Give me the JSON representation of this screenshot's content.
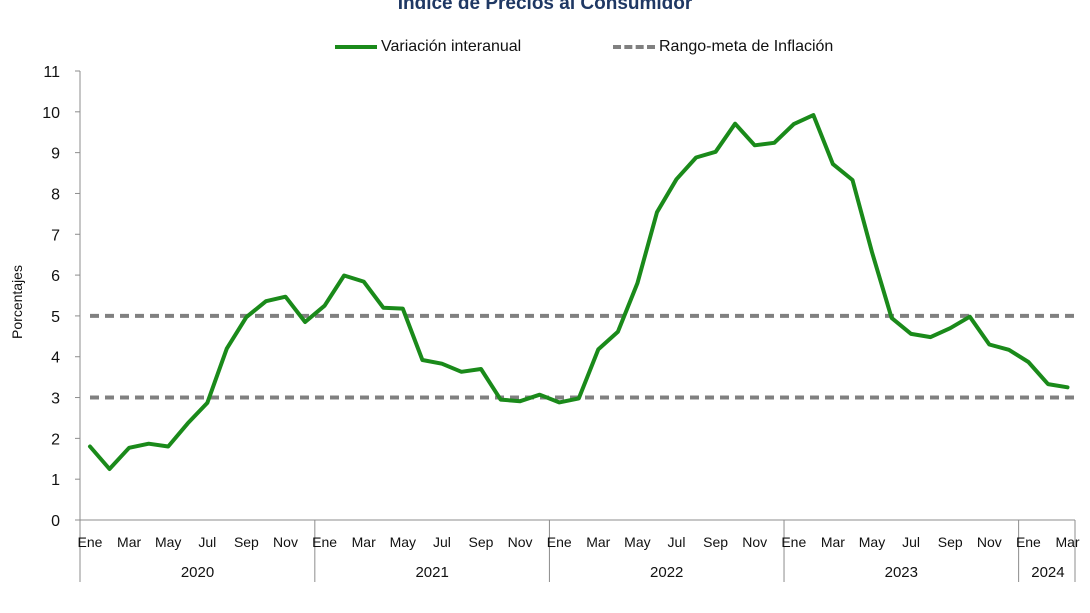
{
  "chart_data": {
    "type": "line",
    "title": "Índice de Precios al Consumidor",
    "xlabel": "",
    "ylabel": "Porcentajes",
    "ylim": [
      0,
      11
    ],
    "yticks": [
      0,
      1,
      2,
      3,
      4,
      5,
      6,
      7,
      8,
      9,
      10,
      11
    ],
    "grid": false,
    "legend_position": "top",
    "month_tick_labels": [
      "Ene",
      "Mar",
      "May",
      "Jul",
      "Sep",
      "Nov"
    ],
    "month_tick_labels_2024": [
      "Ene",
      "Mar"
    ],
    "years": [
      {
        "label": "2020",
        "months": 12
      },
      {
        "label": "2021",
        "months": 12
      },
      {
        "label": "2022",
        "months": 12
      },
      {
        "label": "2023",
        "months": 12
      },
      {
        "label": "2024",
        "months": 3
      }
    ],
    "x": [
      "2020-01",
      "2020-02",
      "2020-03",
      "2020-04",
      "2020-05",
      "2020-06",
      "2020-07",
      "2020-08",
      "2020-09",
      "2020-10",
      "2020-11",
      "2020-12",
      "2021-01",
      "2021-02",
      "2021-03",
      "2021-04",
      "2021-05",
      "2021-06",
      "2021-07",
      "2021-08",
      "2021-09",
      "2021-10",
      "2021-11",
      "2021-12",
      "2022-01",
      "2022-02",
      "2022-03",
      "2022-04",
      "2022-05",
      "2022-06",
      "2022-07",
      "2022-08",
      "2022-09",
      "2022-10",
      "2022-11",
      "2022-12",
      "2023-01",
      "2023-02",
      "2023-03",
      "2023-04",
      "2023-05",
      "2023-06",
      "2023-07",
      "2023-08",
      "2023-09",
      "2023-10",
      "2023-11",
      "2023-12",
      "2024-01",
      "2024-02",
      "2024-03"
    ],
    "series": [
      {
        "name": "Variación interanual",
        "color": "#1a8a1a",
        "style": "solid",
        "values": [
          1.8,
          1.25,
          1.77,
          1.87,
          1.8,
          2.37,
          2.87,
          4.2,
          4.97,
          5.36,
          5.47,
          4.85,
          5.25,
          5.99,
          5.84,
          5.2,
          5.18,
          3.92,
          3.83,
          3.63,
          3.7,
          2.95,
          2.91,
          3.07,
          2.88,
          2.98,
          4.18,
          4.61,
          5.8,
          7.54,
          8.35,
          8.88,
          9.02,
          9.71,
          9.18,
          9.24,
          9.7,
          9.92,
          8.72,
          8.33,
          6.56,
          4.95,
          4.56,
          4.48,
          4.7,
          4.98,
          4.3,
          4.17,
          3.87,
          3.33,
          3.25
        ]
      },
      {
        "name": "Rango-meta de Inflación",
        "color": "#808080",
        "style": "dashed",
        "bounds": [
          3,
          5
        ]
      }
    ]
  }
}
